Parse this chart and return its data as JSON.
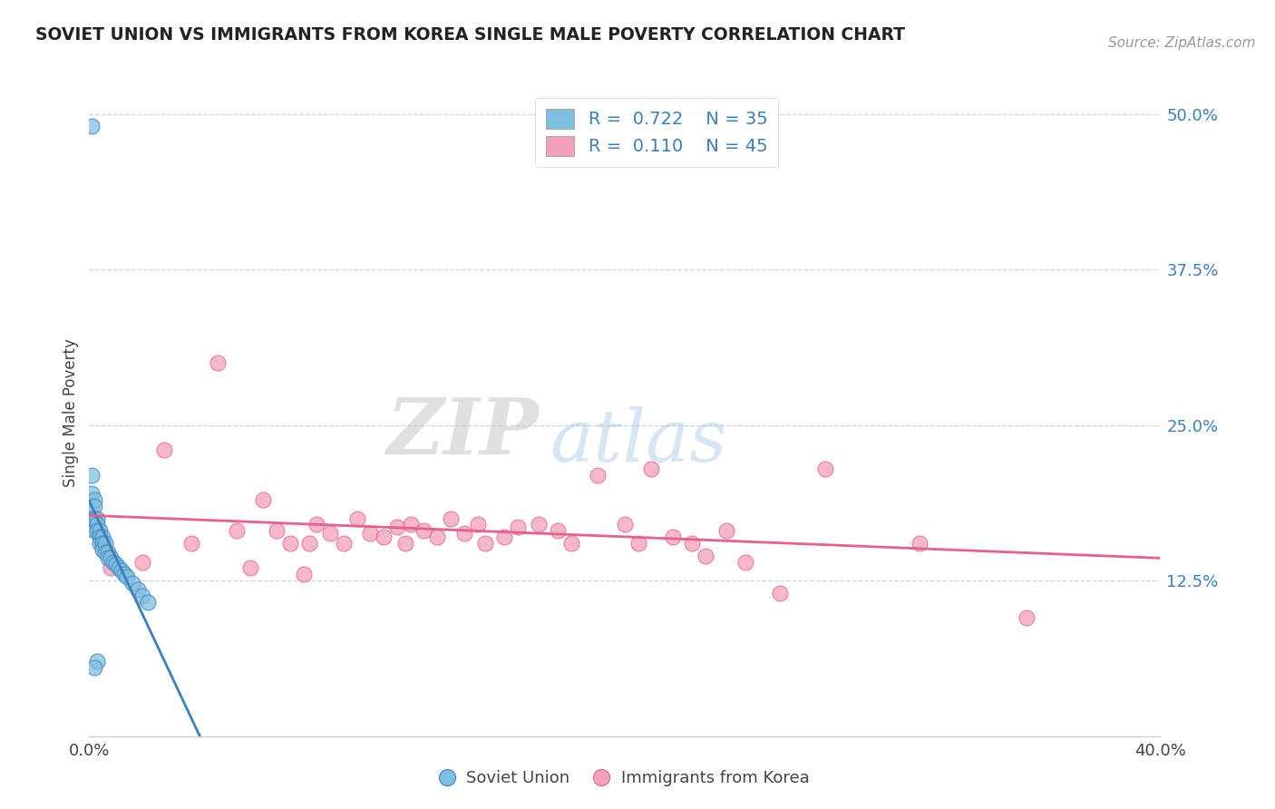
{
  "title": "SOVIET UNION VS IMMIGRANTS FROM KOREA SINGLE MALE POVERTY CORRELATION CHART",
  "source": "Source: ZipAtlas.com",
  "ylabel": "Single Male Poverty",
  "xmin": 0.0,
  "xmax": 0.4,
  "ymin": 0.0,
  "ymax": 0.52,
  "yticks_right": [
    0.125,
    0.25,
    0.375,
    0.5
  ],
  "ytick_labels_right": [
    "12.5%",
    "25.0%",
    "37.5%",
    "50.0%"
  ],
  "blue_color": "#7fbfdf",
  "pink_color": "#f4a0b8",
  "blue_line_color": "#3a7fbf",
  "pink_line_color": "#e8608a",
  "legend_blue_series": "Soviet Union",
  "legend_pink_series": "Immigrants from Korea",
  "R_blue": 0.722,
  "N_blue": 35,
  "R_pink": 0.11,
  "N_pink": 45,
  "soviet_x": [
    0.001,
    0.001,
    0.001,
    0.001,
    0.001,
    0.002,
    0.002,
    0.002,
    0.002,
    0.003,
    0.003,
    0.003,
    0.003,
    0.004,
    0.004,
    0.004,
    0.005,
    0.005,
    0.005,
    0.006,
    0.006,
    0.007,
    0.007,
    0.008,
    0.009,
    0.01,
    0.011,
    0.012,
    0.013,
    0.014,
    0.016,
    0.018,
    0.02,
    0.022,
    0.002
  ],
  "soviet_y": [
    0.49,
    0.21,
    0.195,
    0.185,
    0.175,
    0.19,
    0.185,
    0.175,
    0.165,
    0.175,
    0.17,
    0.165,
    0.06,
    0.165,
    0.16,
    0.155,
    0.16,
    0.155,
    0.15,
    0.155,
    0.148,
    0.148,
    0.143,
    0.143,
    0.14,
    0.138,
    0.135,
    0.133,
    0.13,
    0.128,
    0.123,
    0.118,
    0.113,
    0.108,
    0.055
  ],
  "korea_x": [
    0.008,
    0.02,
    0.028,
    0.038,
    0.048,
    0.055,
    0.06,
    0.065,
    0.07,
    0.075,
    0.08,
    0.082,
    0.085,
    0.09,
    0.095,
    0.1,
    0.105,
    0.11,
    0.115,
    0.118,
    0.12,
    0.125,
    0.13,
    0.135,
    0.14,
    0.145,
    0.148,
    0.155,
    0.16,
    0.168,
    0.175,
    0.18,
    0.19,
    0.2,
    0.205,
    0.21,
    0.218,
    0.225,
    0.23,
    0.238,
    0.245,
    0.258,
    0.275,
    0.31,
    0.35
  ],
  "korea_y": [
    0.135,
    0.14,
    0.23,
    0.155,
    0.3,
    0.165,
    0.135,
    0.19,
    0.165,
    0.155,
    0.13,
    0.155,
    0.17,
    0.163,
    0.155,
    0.175,
    0.163,
    0.16,
    0.168,
    0.155,
    0.17,
    0.165,
    0.16,
    0.175,
    0.163,
    0.17,
    0.155,
    0.16,
    0.168,
    0.17,
    0.165,
    0.155,
    0.21,
    0.17,
    0.155,
    0.215,
    0.16,
    0.155,
    0.145,
    0.165,
    0.14,
    0.115,
    0.215,
    0.155,
    0.095
  ]
}
